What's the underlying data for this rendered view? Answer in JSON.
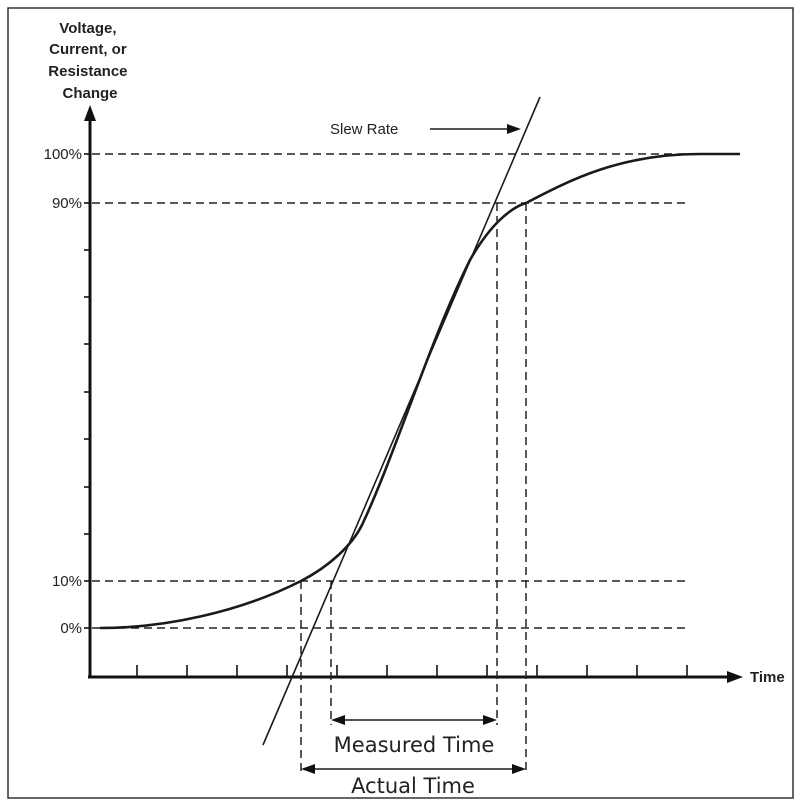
{
  "diagram": {
    "y_axis_label": [
      "Voltage,",
      "Current, or",
      "Resistance",
      "Change"
    ],
    "x_axis_label": "Time",
    "levels": {
      "l100": "100%",
      "l90": "90%",
      "l10": "10%",
      "l0": "0%"
    },
    "slew_rate_label": "Slew Rate",
    "measured_time_label": "Measured Time",
    "actual_time_label": "Actual Time"
  }
}
